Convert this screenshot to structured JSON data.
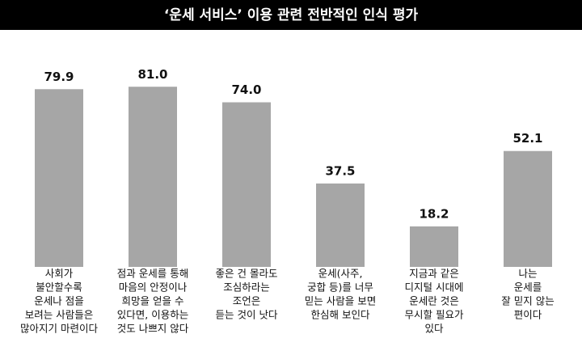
{
  "chart_data": {
    "type": "bar",
    "title": "‘운세 서비스’ 이용 관련 전반적인 인식 평가",
    "categories": [
      [
        "사회가",
        "불안할수록",
        "운세나 점을",
        "보려는 사람들은",
        "많아지기 마련이다"
      ],
      [
        "점과 운세를 통해",
        "마음의 안정이나",
        "희망을 얻을 수",
        "있다면, 이용하는",
        "것도 나쁘지 않다"
      ],
      [
        "좋은 건 몰라도",
        "조심하라는",
        "조언은",
        "듣는 것이 낫다"
      ],
      [
        "운세(사주,",
        "궁합 등)를 너무",
        "믿는 사람을 보면",
        "한심해 보인다"
      ],
      [
        "지금과 같은",
        "디지털 시대에",
        "운세란 것은",
        "무시할 필요가",
        "있다"
      ],
      [
        "나는",
        "운세를",
        "잘 믿지 않는",
        "편이다"
      ]
    ],
    "values": [
      79.9,
      81.0,
      74.0,
      37.5,
      18.2,
      52.1
    ],
    "value_labels": [
      "79.9",
      "81.0",
      "74.0",
      "37.5",
      "18.2",
      "52.1"
    ],
    "color": "#a6a6a6"
  }
}
